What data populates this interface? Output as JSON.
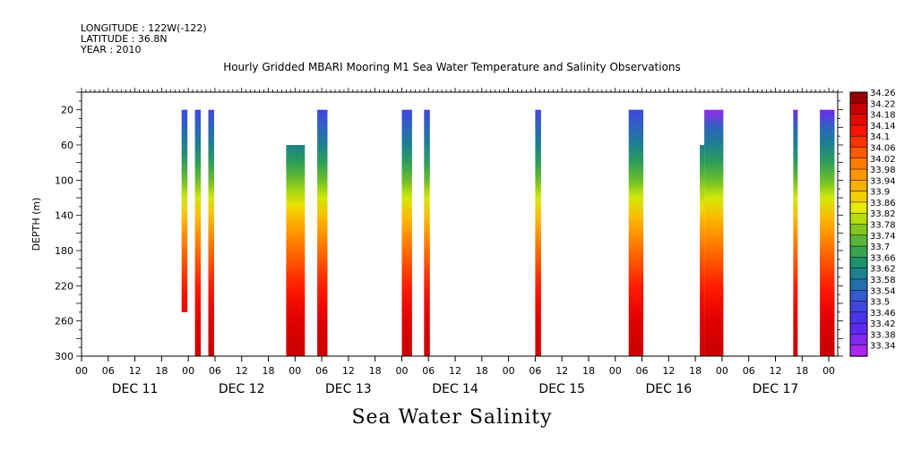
{
  "header": {
    "longitude": "LONGITUDE : 122W(-122)",
    "latitude": "LATITUDE : 36.8N",
    "year": "YEAR : 2010"
  },
  "caption": "Sea Water Salinity",
  "chart_data": {
    "type": "heatmap",
    "title": "Hourly Gridded MBARI Mooring M1 Sea Water Temperature and Salinity Observations",
    "xlabel": "",
    "ylabel": "DEPTH (m)",
    "x_unit": "hours since DEC 11 2010 00:00",
    "xlim": [
      0,
      170
    ],
    "ylim": [
      300,
      0
    ],
    "y_ticks": [
      20,
      60,
      100,
      140,
      180,
      220,
      260,
      300
    ],
    "x_hour_ticks": [
      "00",
      "06",
      "12",
      "18",
      "00",
      "06",
      "12",
      "18",
      "00",
      "06",
      "12",
      "18",
      "00",
      "06",
      "12",
      "18",
      "00",
      "06",
      "12",
      "18",
      "00",
      "06",
      "12",
      "18",
      "00",
      "06",
      "12",
      "18",
      "00"
    ],
    "day_labels": [
      "DEC 11",
      "DEC 12",
      "DEC 13",
      "DEC 14",
      "DEC 15",
      "DEC 16",
      "DEC 17"
    ],
    "colorbar": {
      "levels": [
        "34.26",
        "34.22",
        "34.18",
        "34.14",
        "34.1",
        "34.06",
        "34.02",
        "33.98",
        "33.94",
        "33.9",
        "33.86",
        "33.82",
        "33.78",
        "33.74",
        "33.7",
        "33.66",
        "33.62",
        "33.58",
        "33.54",
        "33.5",
        "33.46",
        "33.42",
        "33.38",
        "33.34"
      ],
      "min": 33.34,
      "max": 34.26
    },
    "salinity_profile": {
      "depths": [
        20,
        60,
        100,
        140,
        180,
        220,
        260,
        300
      ],
      "values": [
        33.5,
        33.62,
        33.76,
        33.92,
        34.04,
        34.12,
        34.2,
        34.22
      ]
    },
    "columns": [
      {
        "start": 22.5,
        "end": 23.8,
        "top": 20,
        "bottom": 250
      },
      {
        "start": 25.5,
        "end": 26.8,
        "top": 20,
        "bottom": 300
      },
      {
        "start": 28.5,
        "end": 29.8,
        "top": 20,
        "bottom": 300
      },
      {
        "start": 46,
        "end": 50.2,
        "top": 60,
        "bottom": 300
      },
      {
        "start": 53,
        "end": 55.3,
        "top": 20,
        "bottom": 300
      },
      {
        "start": 72,
        "end": 74.3,
        "top": 20,
        "bottom": 300
      },
      {
        "start": 77,
        "end": 78.3,
        "top": 20,
        "bottom": 300
      },
      {
        "start": 102,
        "end": 103.3,
        "top": 20,
        "bottom": 300
      },
      {
        "start": 123,
        "end": 126.3,
        "top": 20,
        "bottom": 300
      },
      {
        "start": 139,
        "end": 140,
        "top": 60,
        "bottom": 300
      },
      {
        "start": 140,
        "end": 144.3,
        "top": 20,
        "bottom": 300,
        "low": 33.36
      },
      {
        "start": 160,
        "end": 161,
        "top": 20,
        "bottom": 300,
        "low": 33.4
      },
      {
        "start": 166,
        "end": 169.3,
        "top": 20,
        "bottom": 300,
        "low": 33.4
      }
    ]
  }
}
